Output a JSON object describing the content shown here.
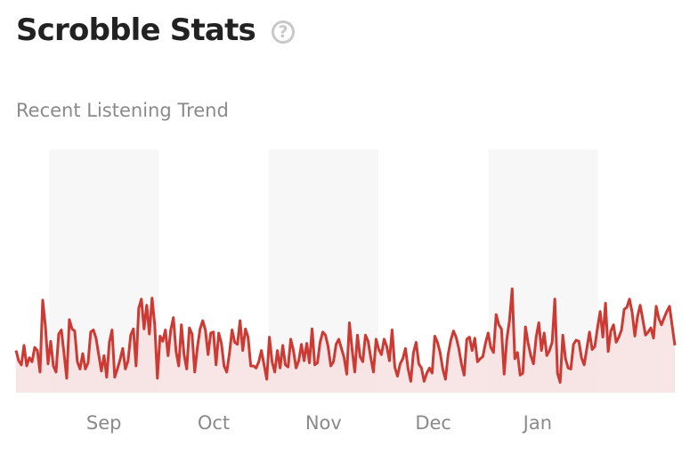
{
  "header": {
    "title": "Scrobble Stats",
    "help_icon": "question-circle-icon"
  },
  "chart_data": {
    "type": "area",
    "title": "Recent Listening Trend",
    "xlabel": "",
    "ylabel": "",
    "grid": false,
    "ylim": [
      0,
      20
    ],
    "x_ticks": [
      "Sep",
      "Oct",
      "Nov",
      "Dec",
      "Jan"
    ],
    "shaded_bands": [
      [
        3,
        13
      ],
      [
        23,
        33
      ],
      [
        43,
        53
      ]
    ],
    "colors": {
      "line": "#cc3a33",
      "fill": "#f6e2e0",
      "band": "#f7f7f7"
    },
    "values": [
      4.1,
      3.1,
      2.7,
      4.6,
      2.6,
      3.4,
      3.0,
      4.4,
      4.1,
      2.0,
      9.0,
      6.5,
      2.8,
      5.0,
      2.6,
      2.0,
      5.7,
      6.1,
      3.8,
      1.4,
      7.1,
      6.2,
      6.0,
      3.0,
      2.3,
      3.8,
      2.3,
      2.9,
      5.9,
      6.1,
      5.3,
      3.7,
      2.1,
      3.6,
      1.5,
      4.9,
      6.1,
      1.5,
      2.3,
      3.2,
      4.3,
      2.3,
      3.1,
      5.6,
      6.2,
      2.6,
      8.2,
      9.1,
      6.2,
      8.5,
      5.7,
      9.2,
      6.6,
      1.4,
      5.5,
      5.0,
      6.1,
      3.6,
      6.1,
      7.3,
      4.0,
      2.6,
      6.6,
      3.7,
      2.3,
      6.3,
      5.7,
      2.0,
      4.4,
      6.2,
      7.0,
      6.1,
      3.7,
      5.8,
      5.9,
      2.7,
      5.8,
      4.8,
      2.6,
      2.0,
      3.8,
      6.1,
      4.9,
      4.7,
      7.0,
      4.1,
      6.2,
      5.4,
      2.6,
      2.6,
      2.4,
      3.0,
      4.1,
      2.7,
      1.3,
      5.4,
      3.0,
      2.0,
      4.1,
      2.4,
      4.6,
      2.7,
      2.5,
      5.2,
      4.1,
      2.4,
      3.1,
      4.7,
      3.1,
      4.8,
      2.9,
      6.2,
      2.7,
      2.9,
      4.9,
      5.9,
      5.6,
      4.5,
      2.6,
      3.0,
      4.7,
      5.2,
      4.3,
      3.4,
      1.8,
      6.8,
      4.2,
      2.0,
      5.6,
      3.5,
      3.0,
      5.6,
      5.0,
      3.4,
      2.0,
      5.2,
      4.2,
      3.7,
      5.2,
      4.5,
      3.1,
      6.1,
      2.5,
      1.6,
      2.8,
      3.3,
      4.3,
      2.3,
      1.1,
      3.9,
      4.9,
      2.8,
      2.4,
      1.1,
      1.9,
      2.4,
      1.9,
      5.5,
      4.9,
      3.9,
      2.3,
      1.3,
      3.7,
      5.1,
      6.0,
      5.4,
      4.3,
      2.8,
      1.7,
      5.2,
      5.4,
      4.1,
      5.3,
      3.0,
      3.3,
      3.5,
      4.8,
      5.8,
      4.4,
      3.9,
      7.6,
      6.6,
      6.2,
      1.8,
      5.2,
      7.0,
      10.1,
      3.3,
      3.9,
      1.7,
      1.9,
      6.4,
      4.8,
      3.6,
      2.8,
      5.4,
      6.8,
      4.1,
      5.8,
      3.6,
      4.1,
      4.9,
      9.1,
      1.9,
      1.0,
      5.6,
      3.3,
      2.4,
      2.3,
      4.7,
      5.1,
      5.0,
      3.4,
      2.7,
      4.3,
      5.9,
      4.2,
      4.5,
      6.3,
      7.9,
      5.4,
      8.7,
      4.0,
      6.0,
      6.6,
      4.9,
      5.4,
      6.1,
      8.1,
      8.3,
      9.1,
      7.8,
      5.5,
      7.4,
      8.5,
      7.1,
      5.6,
      5.9,
      6.3,
      5.3,
      8.4,
      7.2,
      6.6,
      7.3,
      7.9,
      8.4,
      6.5,
      4.6
    ]
  }
}
